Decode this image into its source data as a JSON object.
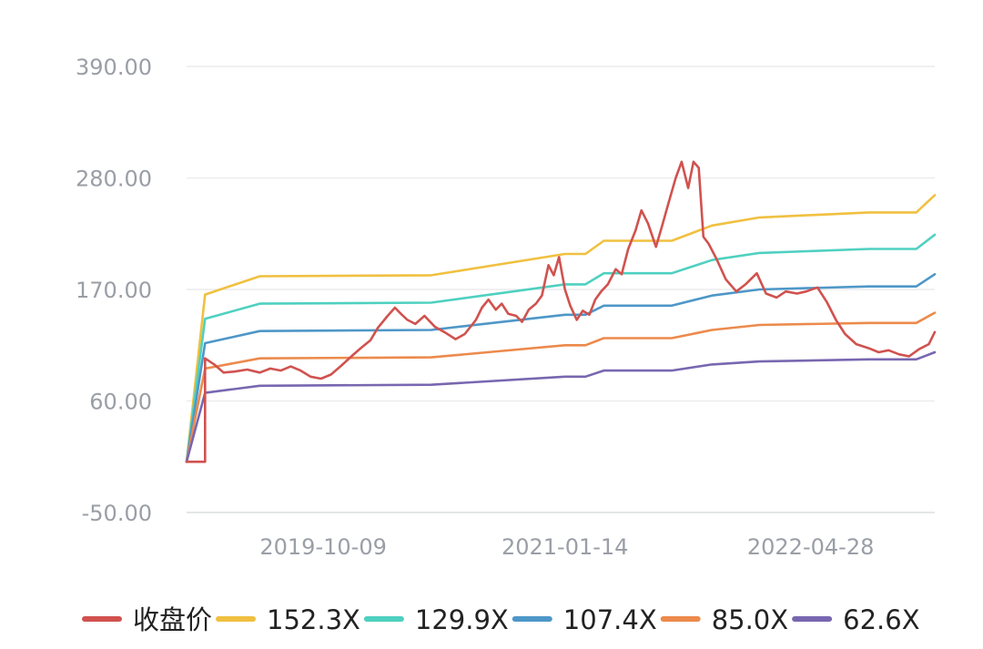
{
  "chart_data": {
    "type": "line",
    "title": "",
    "xlabel": "",
    "ylabel": "",
    "ylim": [
      -50,
      390
    ],
    "y_ticks": [
      "390.00",
      "280.00",
      "170.00",
      "60.00",
      "-50.00"
    ],
    "y_tick_values": [
      390,
      280,
      170,
      60,
      -50
    ],
    "x_ticks": [
      "2019-10-09",
      "2021-01-14",
      "2022-04-28"
    ],
    "x_range": [
      "2019-06-20",
      "2022-07-29"
    ],
    "grid": true,
    "legend_position": "bottom",
    "series": [
      {
        "name": "收盘价",
        "color": "#d0524f",
        "points": [
          [
            "2019-06-20",
            0
          ],
          [
            "2019-07-18",
            0
          ],
          [
            "2019-07-18",
            102
          ],
          [
            "2019-08-01",
            96
          ],
          [
            "2019-08-15",
            88
          ],
          [
            "2019-09-01",
            89
          ],
          [
            "2019-09-20",
            91
          ],
          [
            "2019-10-09",
            88
          ],
          [
            "2019-10-25",
            92
          ],
          [
            "2019-11-10",
            90
          ],
          [
            "2019-11-25",
            94
          ],
          [
            "2019-12-10",
            90
          ],
          [
            "2019-12-25",
            84
          ],
          [
            "2020-01-10",
            82
          ],
          [
            "2020-01-25",
            86
          ],
          [
            "2020-02-10",
            95
          ],
          [
            "2020-02-25",
            104
          ],
          [
            "2020-03-10",
            112
          ],
          [
            "2020-03-25",
            120
          ],
          [
            "2020-04-05",
            132
          ],
          [
            "2020-04-20",
            144
          ],
          [
            "2020-05-01",
            152
          ],
          [
            "2020-05-10",
            146
          ],
          [
            "2020-05-20",
            140
          ],
          [
            "2020-06-01",
            136
          ],
          [
            "2020-06-15",
            144
          ],
          [
            "2020-07-01",
            133
          ],
          [
            "2020-07-15",
            128
          ],
          [
            "2020-08-01",
            121
          ],
          [
            "2020-08-15",
            126
          ],
          [
            "2020-09-01",
            140
          ],
          [
            "2020-09-10",
            152
          ],
          [
            "2020-09-20",
            160
          ],
          [
            "2020-10-01",
            150
          ],
          [
            "2020-10-10",
            156
          ],
          [
            "2020-10-20",
            146
          ],
          [
            "2020-11-01",
            144
          ],
          [
            "2020-11-10",
            138
          ],
          [
            "2020-11-20",
            150
          ],
          [
            "2020-12-01",
            156
          ],
          [
            "2020-12-10",
            164
          ],
          [
            "2020-12-20",
            194
          ],
          [
            "2020-12-28",
            184
          ],
          [
            "2021-01-05",
            202
          ],
          [
            "2021-01-14",
            170
          ],
          [
            "2021-01-22",
            154
          ],
          [
            "2021-02-01",
            140
          ],
          [
            "2021-02-10",
            149
          ],
          [
            "2021-02-20",
            145
          ],
          [
            "2021-03-01",
            160
          ],
          [
            "2021-03-10",
            168
          ],
          [
            "2021-03-20",
            175
          ],
          [
            "2021-04-01",
            190
          ],
          [
            "2021-04-10",
            185
          ],
          [
            "2021-04-20",
            210
          ],
          [
            "2021-05-01",
            228
          ],
          [
            "2021-05-10",
            248
          ],
          [
            "2021-05-20",
            235
          ],
          [
            "2021-06-01",
            212
          ],
          [
            "2021-06-10",
            232
          ],
          [
            "2021-06-20",
            255
          ],
          [
            "2021-07-01",
            280
          ],
          [
            "2021-07-10",
            296
          ],
          [
            "2021-07-20",
            270
          ],
          [
            "2021-07-28",
            296
          ],
          [
            "2021-08-05",
            290
          ],
          [
            "2021-08-12",
            222
          ],
          [
            "2021-08-20",
            215
          ],
          [
            "2021-09-01",
            200
          ],
          [
            "2021-09-15",
            180
          ],
          [
            "2021-10-01",
            168
          ],
          [
            "2021-10-15",
            175
          ],
          [
            "2021-11-01",
            186
          ],
          [
            "2021-11-15",
            166
          ],
          [
            "2021-12-01",
            162
          ],
          [
            "2021-12-15",
            168
          ],
          [
            "2022-01-01",
            166
          ],
          [
            "2022-01-15",
            168
          ],
          [
            "2022-02-01",
            172
          ],
          [
            "2022-02-15",
            158
          ],
          [
            "2022-03-01",
            140
          ],
          [
            "2022-03-15",
            126
          ],
          [
            "2022-04-01",
            116
          ],
          [
            "2022-04-20",
            112
          ],
          [
            "2022-05-05",
            108
          ],
          [
            "2022-05-20",
            110
          ],
          [
            "2022-06-05",
            106
          ],
          [
            "2022-06-20",
            104
          ],
          [
            "2022-07-05",
            111
          ],
          [
            "2022-07-20",
            116
          ],
          [
            "2022-07-29",
            128
          ]
        ]
      },
      {
        "name": "152.3X",
        "color": "#f0c040",
        "points": [
          [
            "2019-06-20",
            0
          ],
          [
            "2019-07-18",
            165
          ],
          [
            "2019-10-09",
            183
          ],
          [
            "2020-06-25",
            184
          ],
          [
            "2021-01-14",
            205
          ],
          [
            "2021-02-14",
            205
          ],
          [
            "2021-03-14",
            218
          ],
          [
            "2021-06-25",
            218
          ],
          [
            "2021-08-25",
            233
          ],
          [
            "2021-11-05",
            241
          ],
          [
            "2022-04-20",
            246
          ],
          [
            "2022-07-01",
            246
          ],
          [
            "2022-07-29",
            263
          ]
        ]
      },
      {
        "name": "129.9X",
        "color": "#4fd0c0",
        "points": [
          [
            "2019-06-20",
            0
          ],
          [
            "2019-07-18",
            141
          ],
          [
            "2019-10-09",
            156
          ],
          [
            "2020-06-25",
            157
          ],
          [
            "2021-01-14",
            175
          ],
          [
            "2021-02-14",
            175
          ],
          [
            "2021-03-14",
            186
          ],
          [
            "2021-06-25",
            186
          ],
          [
            "2021-08-25",
            199
          ],
          [
            "2021-11-05",
            206
          ],
          [
            "2022-04-20",
            210
          ],
          [
            "2022-07-01",
            210
          ],
          [
            "2022-07-29",
            224
          ]
        ]
      },
      {
        "name": "107.4X",
        "color": "#4e97c8",
        "points": [
          [
            "2019-06-20",
            0
          ],
          [
            "2019-07-18",
            117
          ],
          [
            "2019-10-09",
            129
          ],
          [
            "2020-06-25",
            130
          ],
          [
            "2021-01-14",
            145
          ],
          [
            "2021-02-14",
            145
          ],
          [
            "2021-03-14",
            154
          ],
          [
            "2021-06-25",
            154
          ],
          [
            "2021-08-25",
            164
          ],
          [
            "2021-11-05",
            170
          ],
          [
            "2022-04-20",
            173
          ],
          [
            "2022-07-01",
            173
          ],
          [
            "2022-07-29",
            185
          ]
        ]
      },
      {
        "name": "85.0X",
        "color": "#ec8a4c",
        "points": [
          [
            "2019-06-20",
            0
          ],
          [
            "2019-07-18",
            92
          ],
          [
            "2019-10-09",
            102
          ],
          [
            "2020-06-25",
            103
          ],
          [
            "2021-01-14",
            115
          ],
          [
            "2021-02-14",
            115
          ],
          [
            "2021-03-14",
            122
          ],
          [
            "2021-06-25",
            122
          ],
          [
            "2021-08-25",
            130
          ],
          [
            "2021-11-05",
            135
          ],
          [
            "2022-04-20",
            137
          ],
          [
            "2022-07-01",
            137
          ],
          [
            "2022-07-29",
            147
          ]
        ]
      },
      {
        "name": "62.6X",
        "color": "#7867b0",
        "points": [
          [
            "2019-06-20",
            0
          ],
          [
            "2019-07-18",
            68
          ],
          [
            "2019-10-09",
            75
          ],
          [
            "2020-06-25",
            76
          ],
          [
            "2021-01-14",
            84
          ],
          [
            "2021-02-14",
            84
          ],
          [
            "2021-03-14",
            90
          ],
          [
            "2021-06-25",
            90
          ],
          [
            "2021-08-25",
            96
          ],
          [
            "2021-11-05",
            99
          ],
          [
            "2022-04-20",
            101
          ],
          [
            "2022-07-01",
            101
          ],
          [
            "2022-07-29",
            108
          ]
        ]
      }
    ]
  }
}
